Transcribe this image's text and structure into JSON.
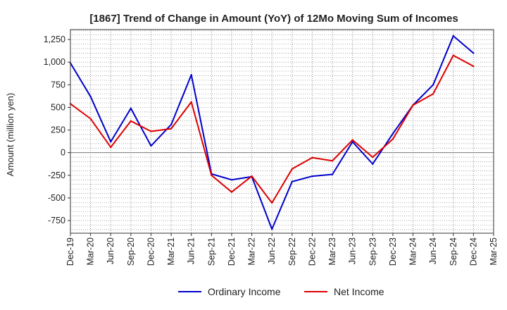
{
  "chart_data": {
    "type": "line",
    "title": "[1867]  Trend of Change in Amount (YoY) of 12Mo Moving Sum of Incomes",
    "xlabel": "",
    "ylabel": "Amount (million yen)",
    "categories": [
      "Dec-19",
      "Mar-20",
      "Jun-20",
      "Sep-20",
      "Dec-20",
      "Mar-21",
      "Jun-21",
      "Sep-21",
      "Dec-21",
      "Mar-22",
      "Jun-22",
      "Sep-22",
      "Dec-22",
      "Mar-23",
      "Jun-23",
      "Sep-23",
      "Dec-23",
      "Mar-24",
      "Jun-24",
      "Sep-24",
      "Dec-24",
      "Mar-25"
    ],
    "yticks": [
      -750,
      -500,
      -250,
      0,
      250,
      500,
      750,
      1000,
      1250
    ],
    "ytick_labels": [
      "-750",
      "-500",
      "-250",
      "0",
      "250",
      "500",
      "750",
      "1,000",
      "1,250"
    ],
    "ylim": [
      -890,
      1360
    ],
    "grid": true,
    "legend_position": "bottom",
    "series": [
      {
        "name": "Ordinary Income",
        "color": "#0000cc",
        "values": [
          990,
          620,
          120,
          490,
          75,
          310,
          860,
          -235,
          -300,
          -265,
          -845,
          -320,
          -260,
          -240,
          120,
          -125,
          210,
          525,
          750,
          1290,
          1100,
          null
        ]
      },
      {
        "name": "Net Income",
        "color": "#dd0000",
        "values": [
          540,
          375,
          60,
          350,
          235,
          265,
          560,
          -250,
          -435,
          -260,
          -555,
          -180,
          -55,
          -90,
          140,
          -50,
          150,
          525,
          650,
          1075,
          955,
          null
        ]
      }
    ]
  }
}
